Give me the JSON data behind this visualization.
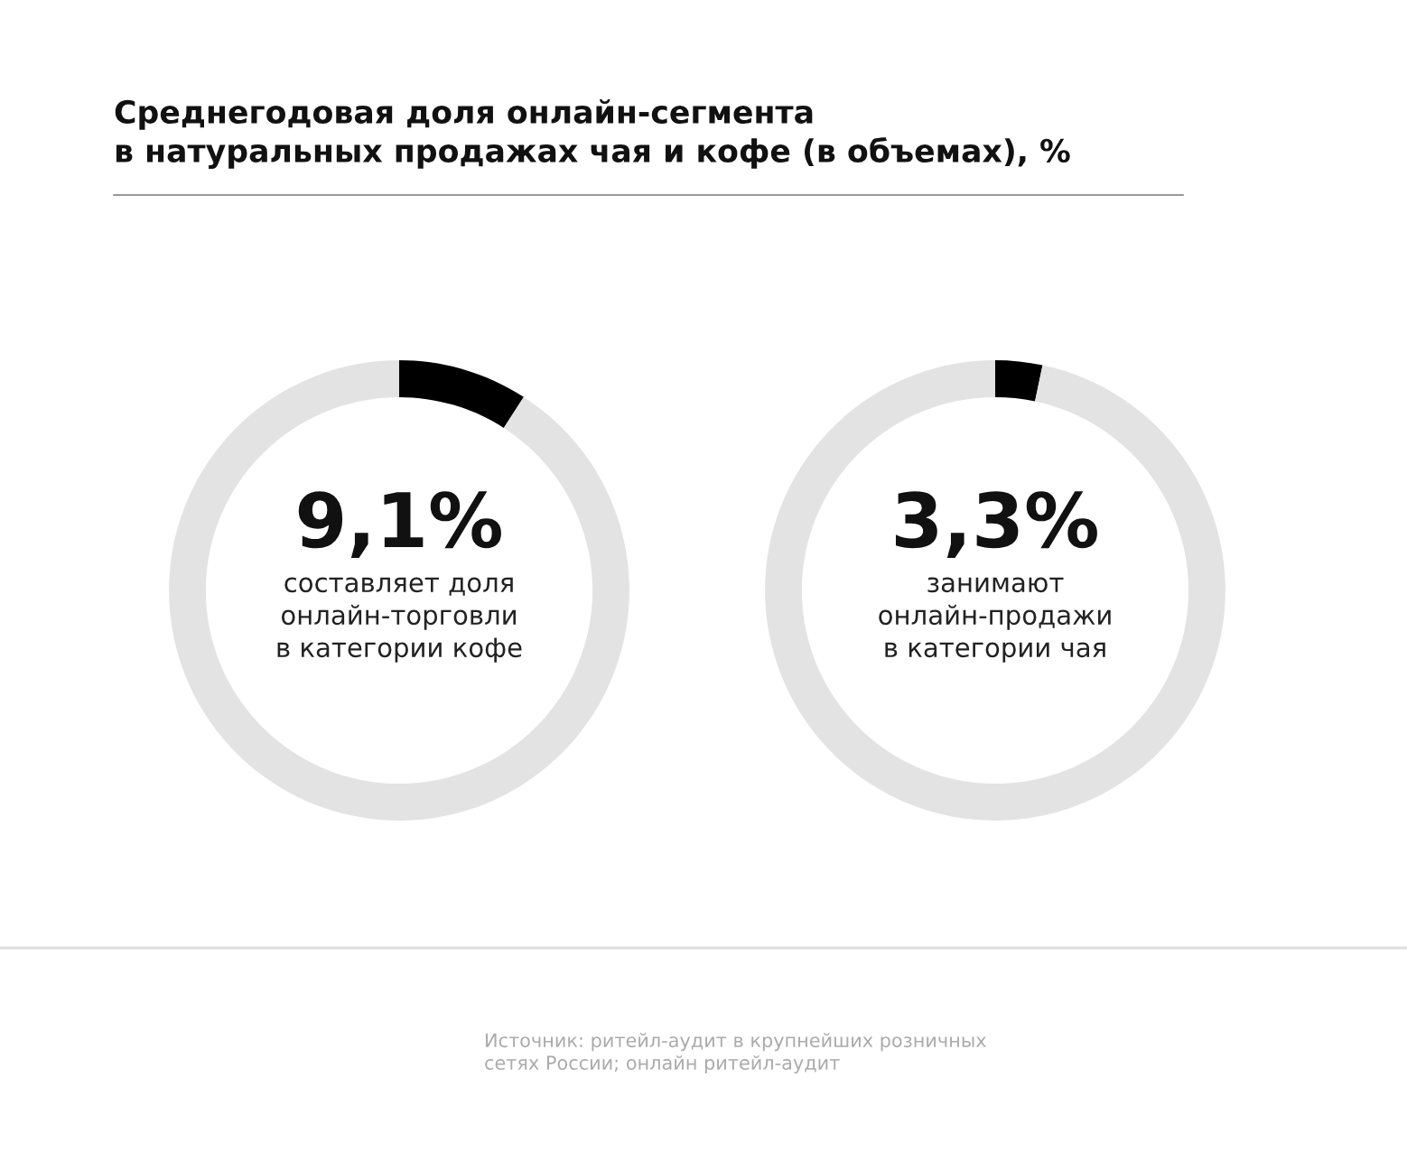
{
  "chart_data": [
    {
      "type": "donut",
      "title": "Среднегодовая доля онлайн-сегмента\nв натуральных продажах чая и кофе (в объемах), %",
      "categories": [
        null,
        null
      ],
      "values": [
        9.1,
        90.9
      ],
      "colors": [
        "#000000",
        "#e3e3e3"
      ],
      "value_labels": [
        "9,1%",
        null
      ],
      "annotations": [
        "составляет доля\nонлайн-торговли\nв категории кофе",
        "Источник: ритейл-аудит в крупнейших розничных\nсетях России; онлайн ритейл-аудит"
      ]
    },
    {
      "type": "donut",
      "categories": [
        null,
        null
      ],
      "values": [
        3.3,
        96.7
      ],
      "colors": [
        "#000000",
        "#e3e3e3"
      ],
      "value_labels": [
        "3,3%",
        null
      ],
      "annotations": [
        "занимают\nонлайн-продажи\nв категории чая"
      ]
    }
  ]
}
